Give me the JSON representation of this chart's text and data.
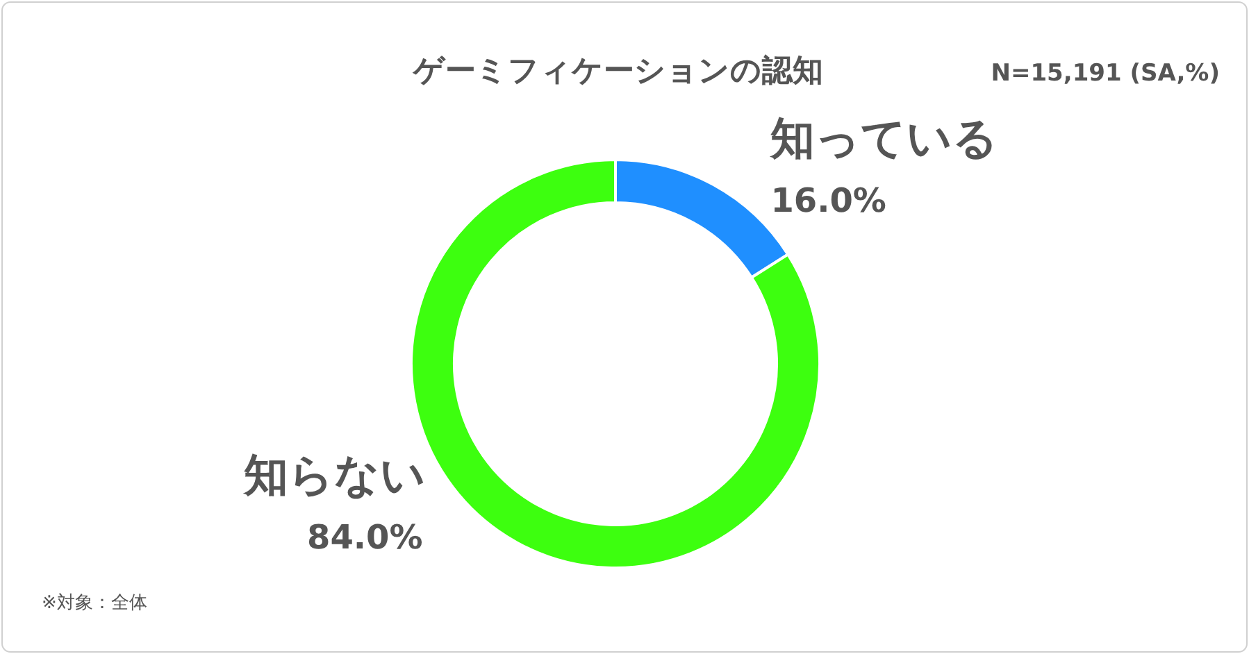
{
  "chart_data": {
    "type": "donut",
    "title": "ゲーミフィケーションの認知",
    "categories": [
      "知っている",
      "知らない"
    ],
    "values": [
      16.0,
      84.0
    ],
    "colors": [
      "#1f8fff",
      "#3dff0f"
    ],
    "value_labels": [
      "16.0%",
      "84.0%"
    ],
    "annotations": [
      "N=15,191 (SA,%)",
      "※対象：全体"
    ]
  }
}
